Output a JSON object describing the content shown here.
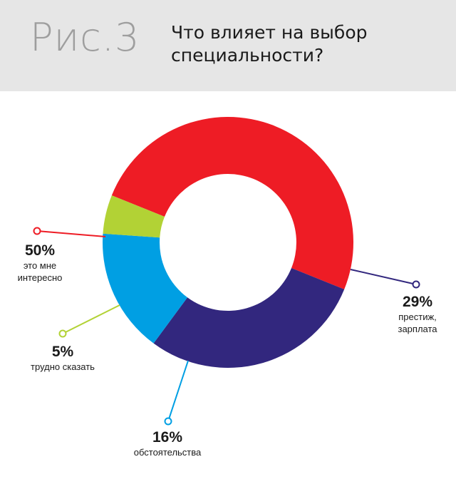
{
  "header": {
    "figure_label": "Рис.3",
    "title_line1": "Что влияет на выбор",
    "title_line2": "специальности?"
  },
  "colors": {
    "header_bg": "#e6e6e6",
    "segment_red": "#ee1c25",
    "segment_navy": "#32277e",
    "segment_blue": "#009fe3",
    "segment_green": "#b2d235"
  },
  "chart_data": {
    "type": "pie",
    "donut": true,
    "title": "Что влияет на выбор специальности?",
    "unit": "%",
    "slices": [
      {
        "label": "это мне интересно",
        "value": 50,
        "color": "#ee1c25",
        "pct_text": "50%",
        "desc_lines": [
          "это мне",
          "интересно"
        ]
      },
      {
        "label": "престиж, зарплата",
        "value": 29,
        "color": "#32277e",
        "pct_text": "29%",
        "desc_lines": [
          "престиж,",
          "зарплата"
        ]
      },
      {
        "label": "обстоятельства",
        "value": 16,
        "color": "#009fe3",
        "pct_text": "16%",
        "desc_lines": [
          "обстоятельства"
        ]
      },
      {
        "label": "трудно сказать",
        "value": 5,
        "color": "#b2d235",
        "pct_text": "5%",
        "desc_lines": [
          "трудно сказать"
        ]
      }
    ]
  }
}
